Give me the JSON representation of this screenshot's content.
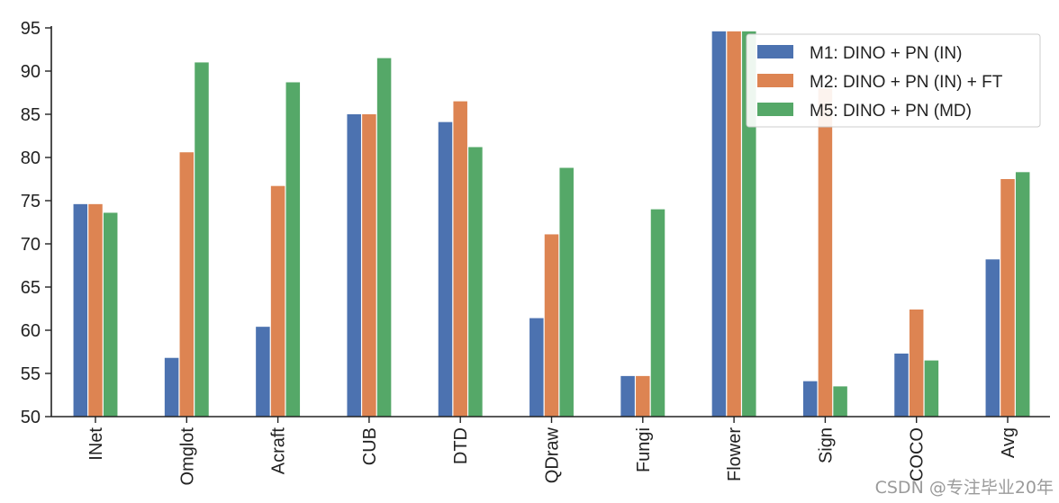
{
  "chart_data": {
    "type": "bar",
    "categories": [
      "INet",
      "Omglot",
      "Acraft",
      "CUB",
      "DTD",
      "QDraw",
      "Fungi",
      "Flower",
      "Sign",
      "COCO",
      "Avg"
    ],
    "series": [
      {
        "name": "M1: DINO + PN (IN)",
        "color": "#4c72b0",
        "values": [
          74.6,
          56.8,
          60.4,
          85.0,
          84.1,
          61.4,
          54.7,
          94.6,
          54.1,
          57.3,
          68.2
        ]
      },
      {
        "name": "M2: DINO + PN (IN) + FT",
        "color": "#dd8452",
        "values": [
          74.6,
          80.6,
          76.7,
          85.0,
          86.5,
          71.1,
          54.7,
          94.6,
          88.0,
          62.4,
          77.5
        ]
      },
      {
        "name": "M5: DINO + PN (MD)",
        "color": "#55a868",
        "values": [
          73.6,
          91.0,
          88.7,
          91.5,
          81.2,
          78.8,
          74.0,
          94.6,
          53.5,
          56.5,
          78.3
        ]
      }
    ],
    "ylim": [
      50,
      95
    ],
    "yticks": [
      50,
      55,
      60,
      65,
      70,
      75,
      80,
      85,
      90,
      95
    ],
    "grid": false,
    "legend_position": "top-right"
  },
  "watermark": "CSDN @专注毕业20年"
}
